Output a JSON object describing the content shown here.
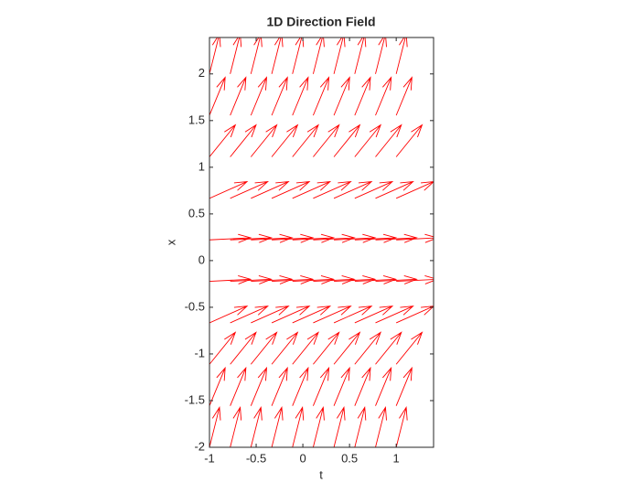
{
  "chart_data": {
    "type": "quiver",
    "title": "1D Direction Field",
    "xlabel": "t",
    "ylabel": "x",
    "color": "#ff0000",
    "x": [
      -1,
      -0.778,
      -0.556,
      -0.333,
      -0.111,
      0.111,
      0.333,
      0.556,
      0.778,
      1
    ],
    "y": [
      -2,
      -1.556,
      -1.111,
      -0.667,
      -0.222,
      0.222,
      0.667,
      1.111,
      1.556,
      2
    ],
    "u": [
      0.107,
      0.168,
      0.277,
      0.402,
      0.44,
      0.44,
      0.402,
      0.277,
      0.168,
      0.107
    ],
    "v": [
      0.427,
      0.407,
      0.342,
      0.179,
      0.022,
      0.022,
      0.179,
      0.342,
      0.407,
      0.427
    ],
    "xlim": [
      -1,
      1.4
    ],
    "ylim": [
      -2,
      2.39
    ],
    "xticks": [
      -1,
      -0.5,
      0,
      0.5,
      1
    ],
    "yticks": [
      -2,
      -1.5,
      -1,
      -0.5,
      0,
      0.5,
      1,
      1.5,
      2
    ]
  }
}
